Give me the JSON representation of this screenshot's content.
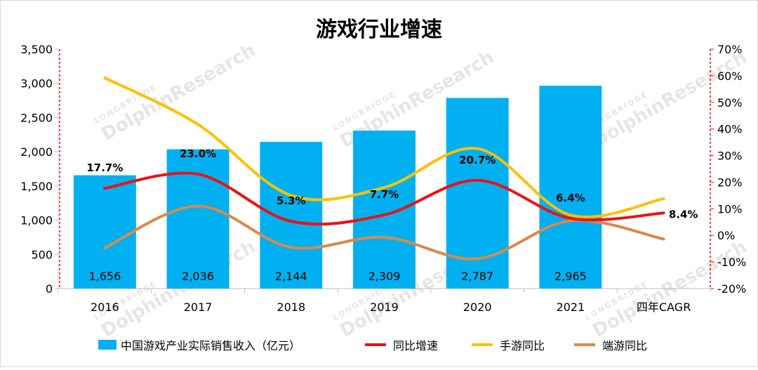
{
  "chart_data": {
    "type": "bar+line",
    "title": "游戏行业增速",
    "categories": [
      "2016",
      "2017",
      "2018",
      "2019",
      "2020",
      "2021",
      "四年CAGR"
    ],
    "bars": {
      "name": "中国游戏产业实际销售收入（亿元）",
      "color": "#00b0f0",
      "values": [
        1656,
        2036,
        2144,
        2309,
        2787,
        2965
      ],
      "labels": [
        "1,656",
        "2,036",
        "2,144",
        "2,309",
        "2,787",
        "2,965"
      ]
    },
    "series": [
      {
        "name": "同比增速",
        "color": "#ee1111",
        "values": [
          17.7,
          23.0,
          5.3,
          7.7,
          20.7,
          6.4,
          8.4
        ],
        "labels": [
          "17.7%",
          "23.0%",
          "5.3%",
          "7.7%",
          "20.7%",
          "6.4%",
          "8.4%"
        ]
      },
      {
        "name": "手游同比",
        "color": "#ffc000",
        "values": [
          59.2,
          41.7,
          15.0,
          18.0,
          32.6,
          7.6,
          13.8
        ]
      },
      {
        "name": "端游同比",
        "color": "#d9894b",
        "values": [
          -4.7,
          11.0,
          -4.5,
          -0.7,
          -8.8,
          5.5,
          -1.4
        ]
      }
    ],
    "y_left": {
      "min": 0,
      "max": 3500,
      "ticks": [
        "0",
        "500",
        "1,000",
        "1,500",
        "2,000",
        "2,500",
        "3,000",
        "3,500"
      ]
    },
    "y_right": {
      "min": -20,
      "max": 70,
      "ticks": [
        "-20%",
        "-10%",
        "0%",
        "10%",
        "20%",
        "30%",
        "40%",
        "50%",
        "60%",
        "70%"
      ]
    },
    "legend": [
      "中国游戏产业实际销售收入（亿元）",
      "同比增速",
      "手游同比",
      "端游同比"
    ],
    "watermark": "LONGBRIDGE DolphinResearch"
  }
}
